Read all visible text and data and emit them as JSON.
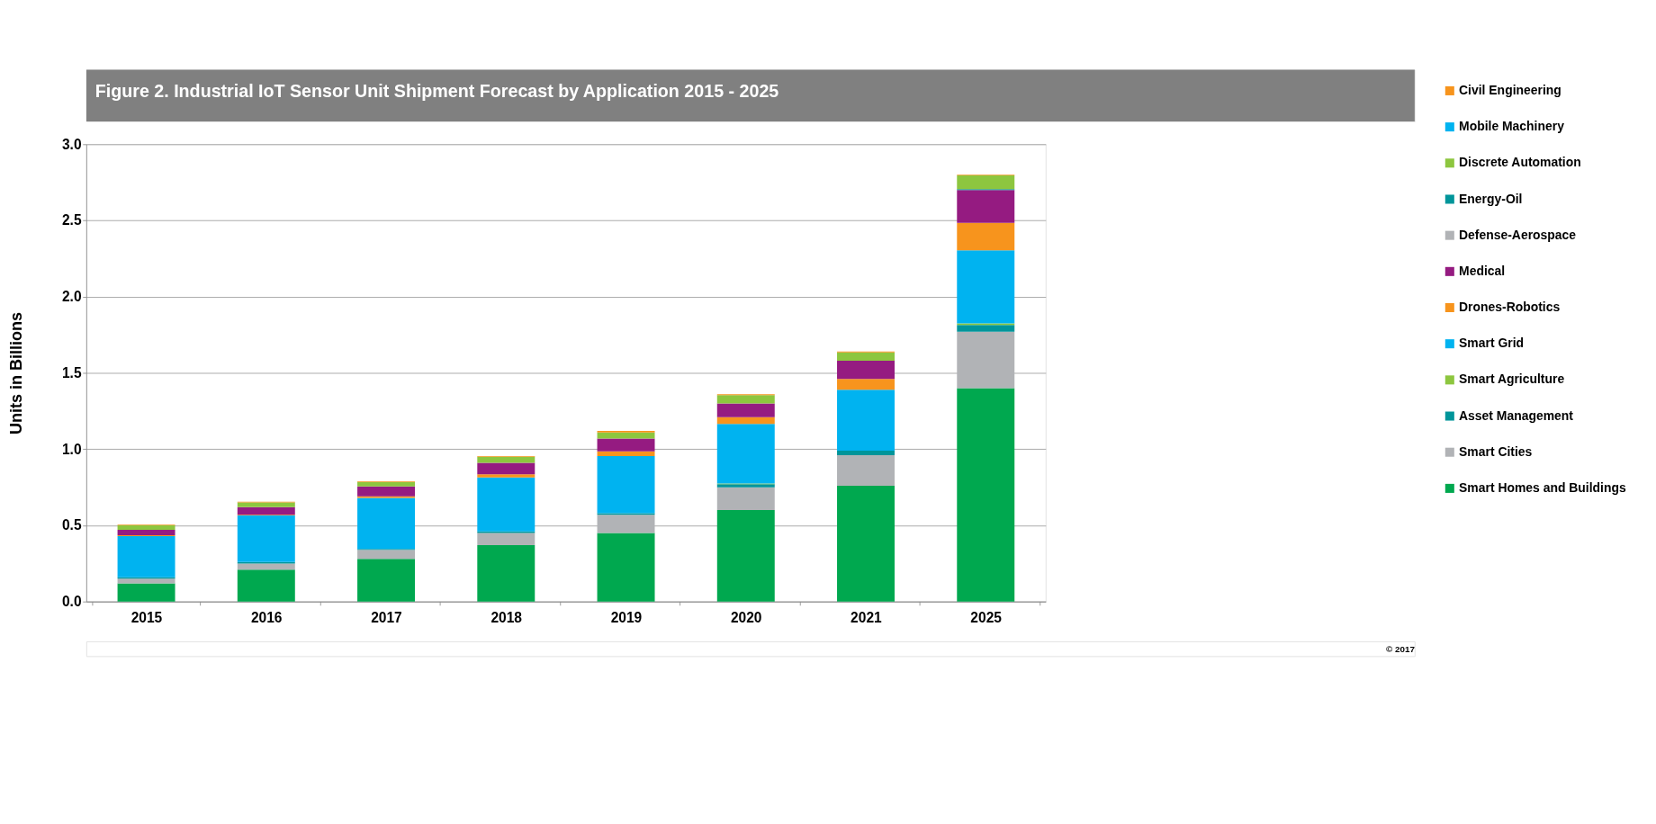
{
  "chart_data": {
    "type": "bar",
    "title": "Figure 2. Industrial IoT Sensor Unit Shipment Forecast by Application 2015 - 2025",
    "ylabel": "Units in Billions",
    "categories": [
      "2015",
      "2016",
      "2017",
      "2018",
      "2019",
      "2020",
      "2021",
      "2025"
    ],
    "stacked": true,
    "series": [
      {
        "name": "Smart Homes and Buildings",
        "color": "#00a84f",
        "values": [
          0.12,
          0.21,
          0.28,
          0.37,
          0.45,
          0.6,
          0.76,
          1.4
        ]
      },
      {
        "name": "Smart Cities",
        "color": "#b1b3b6",
        "values": [
          0.03,
          0.04,
          0.06,
          0.08,
          0.12,
          0.15,
          0.2,
          0.37
        ]
      },
      {
        "name": "Asset Management",
        "color": "#00959a",
        "values": [
          0.01,
          0.01,
          0.005,
          0.01,
          0.01,
          0.02,
          0.03,
          0.045
        ]
      },
      {
        "name": "Smart Agriculture",
        "color": "#8dc63f",
        "values": [
          0,
          0,
          0,
          0,
          0,
          0.005,
          0,
          0.01
        ]
      },
      {
        "name": "Smart Grid",
        "color": "#00b3f0",
        "values": [
          0.27,
          0.305,
          0.335,
          0.355,
          0.375,
          0.39,
          0.4,
          0.48
        ]
      },
      {
        "name": "Drones-Robotics",
        "color": "#f7941d",
        "values": [
          0.005,
          0.005,
          0.01,
          0.02,
          0.03,
          0.045,
          0.07,
          0.18
        ]
      },
      {
        "name": "Medical",
        "color": "#951b81",
        "values": [
          0.035,
          0.05,
          0.065,
          0.075,
          0.085,
          0.09,
          0.12,
          0.215
        ]
      },
      {
        "name": "Defense-Aerospace",
        "color": "#b1b3b6",
        "values": [
          0,
          0,
          0,
          0,
          0,
          0,
          0,
          0
        ]
      },
      {
        "name": "Energy-Oil",
        "color": "#00959a",
        "values": [
          0,
          0,
          0,
          0,
          0,
          0,
          0,
          0.005
        ]
      },
      {
        "name": "Discrete Automation",
        "color": "#8dc63f",
        "values": [
          0.03,
          0.03,
          0.03,
          0.04,
          0.04,
          0.055,
          0.055,
          0.09
        ]
      },
      {
        "name": "Mobile Machinery",
        "color": "#00b3f0",
        "values": [
          0,
          0,
          0,
          0,
          0,
          0,
          0,
          0
        ]
      },
      {
        "name": "Civil Engineering",
        "color": "#f7941d",
        "values": [
          0.005,
          0.005,
          0.005,
          0.005,
          0.01,
          0.005,
          0.005,
          0.005
        ]
      }
    ],
    "ylim": [
      0,
      3.0
    ],
    "yticks": [
      {
        "value": 0,
        "label": "0.0"
      },
      {
        "value": 0.5,
        "label": "0.5"
      },
      {
        "value": 1.0,
        "label": "1.0"
      },
      {
        "value": 1.5,
        "label": "1.5"
      },
      {
        "value": 2.0,
        "label": "2.0"
      },
      {
        "value": 2.5,
        "label": "2.5"
      },
      {
        "value": 3.0,
        "label": "3.0"
      }
    ],
    "grid": "y",
    "legend": "right",
    "annotations": [
      "© 2017"
    ]
  }
}
